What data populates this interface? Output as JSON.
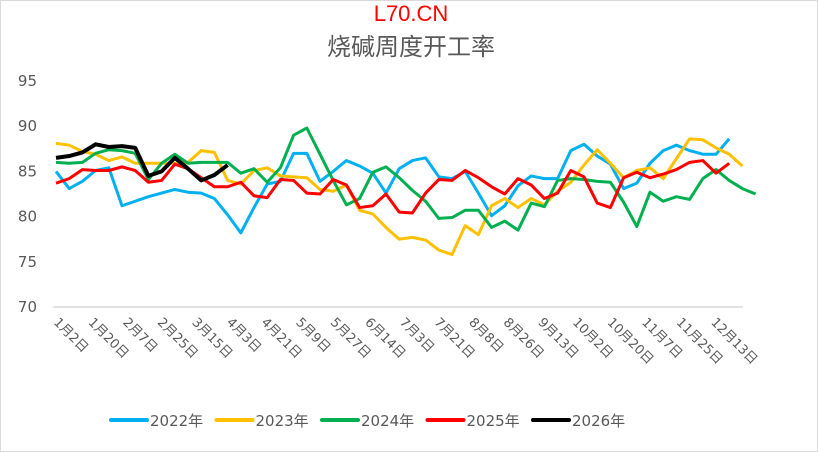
{
  "chart_data": {
    "type": "line",
    "title": "烧碱周度开工率",
    "watermark": "L70.CN",
    "xlabel": "",
    "ylabel": "",
    "ylim": [
      70,
      95
    ],
    "yticks": [
      70,
      75,
      80,
      85,
      90,
      95
    ],
    "grid": false,
    "legend_position": "bottom",
    "x_tick_labels": [
      "1月2日",
      "1月20日",
      "2月7日",
      "2月25日",
      "3月15日",
      "4月3日",
      "4月21日",
      "5月9日",
      "5月27日",
      "6月14日",
      "7月3日",
      "7月21日",
      "8月8日",
      "8月26日",
      "9月13日",
      "10月2日",
      "10月20日",
      "11月7日",
      "11月25日",
      "12月13日"
    ],
    "series": [
      {
        "name": "2022年",
        "color": "#00b0f0",
        "values": [
          85.0,
          83.1,
          83.9,
          85.1,
          85.4,
          81.2,
          81.7,
          82.2,
          82.6,
          83.0,
          82.7,
          82.6,
          82.0,
          80.2,
          78.2,
          81.0,
          83.6,
          83.9,
          87.0,
          87.0,
          83.9,
          85.0,
          86.2,
          85.6,
          84.8,
          82.6,
          85.3,
          86.2,
          86.5,
          84.4,
          84.2,
          85.0,
          82.6,
          80.1,
          81.2,
          83.4,
          84.5,
          84.2,
          84.2,
          87.3,
          88.0,
          86.7,
          85.8,
          83.1,
          83.7,
          85.9,
          87.3,
          87.9,
          87.3,
          86.9,
          86.9,
          88.6
        ]
      },
      {
        "name": "2023年",
        "color": "#ffc000",
        "values": [
          88.1,
          87.9,
          87.2,
          86.9,
          86.2,
          86.6,
          85.9,
          85.9,
          85.9,
          85.9,
          86.0,
          87.3,
          87.1,
          84.0,
          83.6,
          85.1,
          85.4,
          84.5,
          84.4,
          84.3,
          83.0,
          82.8,
          83.5,
          80.7,
          80.3,
          78.8,
          77.5,
          77.7,
          77.4,
          76.3,
          75.8,
          79.0,
          78.0,
          81.2,
          82.0,
          81.0,
          82.0,
          81.3,
          82.8,
          83.8,
          85.7,
          87.4,
          85.9,
          84.3,
          85.1,
          85.4,
          84.2,
          86.4,
          88.6,
          88.5,
          87.6,
          86.9,
          85.6
        ]
      },
      {
        "name": "2024年",
        "color": "#00b050",
        "values": [
          86.0,
          85.9,
          86.0,
          87.0,
          87.4,
          87.3,
          87.0,
          84.1,
          85.9,
          86.9,
          85.9,
          86.0,
          86.0,
          86.0,
          84.8,
          85.3,
          83.8,
          85.4,
          89.0,
          89.8,
          86.9,
          84.0,
          81.3,
          82.0,
          84.9,
          85.5,
          84.3,
          82.9,
          81.7,
          79.8,
          79.9,
          80.7,
          80.7,
          78.8,
          79.5,
          78.5,
          81.5,
          81.1,
          84.0,
          84.2,
          84.1,
          83.9,
          83.8,
          81.6,
          78.9,
          82.7,
          81.7,
          82.2,
          81.9,
          84.2,
          85.2,
          84.0,
          83.1,
          82.5
        ]
      },
      {
        "name": "2025年",
        "color": "#ff0000",
        "values": [
          83.7,
          84.2,
          85.2,
          85.1,
          85.1,
          85.5,
          85.1,
          83.8,
          84.0,
          85.8,
          85.3,
          84.3,
          83.3,
          83.3,
          83.8,
          82.3,
          82.1,
          84.1,
          84.0,
          82.6,
          82.5,
          84.1,
          83.5,
          81.0,
          81.2,
          82.5,
          80.5,
          80.4,
          82.6,
          84.1,
          84.0,
          85.1,
          84.3,
          83.3,
          82.5,
          84.2,
          83.5,
          82.0,
          82.6,
          85.1,
          84.4,
          81.5,
          81.0,
          84.3,
          84.9,
          84.3,
          84.7,
          85.2,
          86.0,
          86.2,
          84.8,
          85.9
        ]
      },
      {
        "name": "2026年",
        "color": "#000000",
        "values": [
          86.5,
          86.7,
          87.1,
          88.0,
          87.7,
          87.8,
          87.6,
          84.5,
          85.0,
          86.5,
          85.3,
          84.0,
          84.6,
          85.7
        ]
      }
    ]
  }
}
